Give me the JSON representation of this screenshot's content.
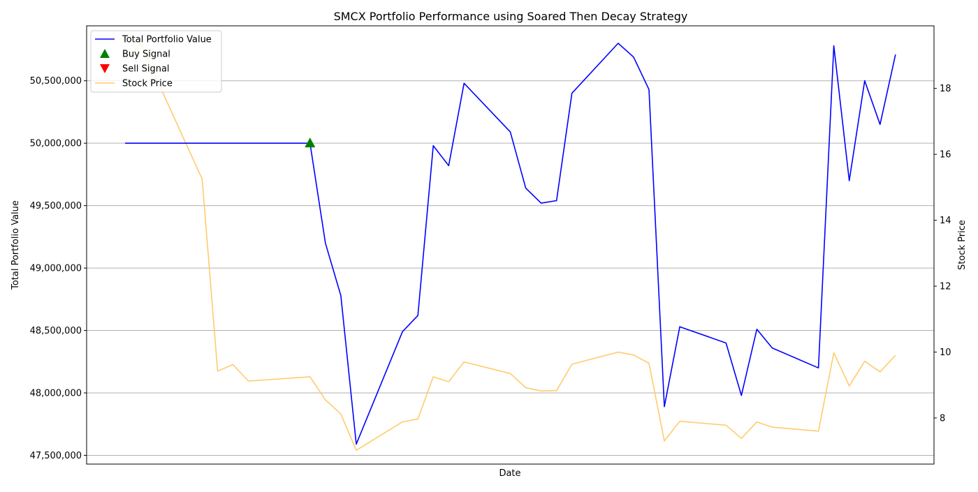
{
  "chart_data": {
    "type": "line",
    "title": "SMCX Portfolio Performance using Soared Then Decay Strategy",
    "xlabel": "Date",
    "ylabel": "Total Portfolio Value",
    "y2label": "Stock Price",
    "ylim": [
      47430000,
      50940000
    ],
    "y2lim": [
      6.6,
      19.9
    ],
    "x_tick_labels": [],
    "y_ticks": [
      47500000,
      48000000,
      48500000,
      49000000,
      49500000,
      50000000,
      50500000
    ],
    "y_tick_labels": [
      "47,500,000",
      "48,000,000",
      "48,500,000",
      "49,000,000",
      "49,500,000",
      "50,000,000",
      "50,500,000"
    ],
    "y2_ticks": [
      8,
      10,
      12,
      14,
      16,
      18
    ],
    "y2_tick_labels": [
      "8",
      "10",
      "12",
      "14",
      "16",
      "18"
    ],
    "grid": "horizontal",
    "legend_position": "top-left",
    "x": [
      0,
      1,
      5,
      6,
      7,
      8,
      12,
      13,
      14,
      15,
      18,
      19,
      20,
      21,
      22,
      25,
      26,
      27,
      28,
      29,
      32,
      33,
      34,
      35,
      36,
      39,
      40,
      41,
      42,
      45,
      46,
      47,
      48,
      49,
      50
    ],
    "series": [
      {
        "name": "Total Portfolio Value",
        "axis": "left",
        "color": "#0000ff",
        "values": [
          50000000,
          50000000,
          50000000,
          50000000,
          50000000,
          50000000,
          50000000,
          49200000,
          48780000,
          47590000,
          48490000,
          48620000,
          49980000,
          49820000,
          50480000,
          50090000,
          49640000,
          49520000,
          49540000,
          50400000,
          50800000,
          50690000,
          50430000,
          47890000,
          48530000,
          48400000,
          47980000,
          48510000,
          48360000,
          48200000,
          50780000,
          49700000,
          50500000,
          50150000,
          50710000
        ]
      },
      {
        "name": "Stock Price",
        "axis": "right",
        "color": "#ffc55c",
        "values": [
          18.85,
          19.35,
          15.25,
          9.42,
          9.62,
          9.12,
          9.25,
          8.55,
          8.12,
          7.02,
          7.88,
          7.97,
          9.25,
          9.1,
          9.7,
          9.35,
          8.92,
          8.82,
          8.83,
          9.63,
          10.0,
          9.91,
          9.66,
          7.3,
          7.9,
          7.78,
          7.38,
          7.88,
          7.72,
          7.6,
          9.98,
          8.97,
          9.72,
          9.4,
          9.9
        ]
      }
    ],
    "buy_signals": [
      {
        "x": 12,
        "value": 50000000
      }
    ],
    "sell_signals": [],
    "legend": [
      {
        "label": "Total Portfolio Value",
        "kind": "line",
        "color": "#0000ff"
      },
      {
        "label": "Buy Signal",
        "kind": "triangle-up",
        "color": "#008000"
      },
      {
        "label": "Sell Signal",
        "kind": "triangle-down",
        "color": "#ff0000"
      },
      {
        "label": "Stock Price",
        "kind": "line",
        "color": "#ffc55c"
      }
    ]
  }
}
